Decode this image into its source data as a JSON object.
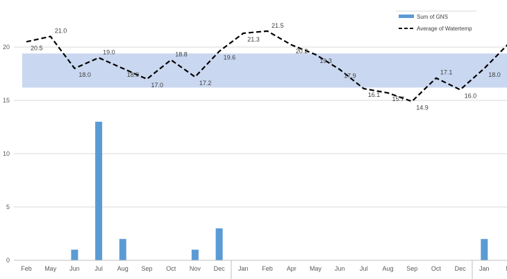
{
  "chart_data": {
    "type": "bar+line",
    "categories": [
      "Feb",
      "May",
      "Jun",
      "Jul",
      "Aug",
      "Sep",
      "Oct",
      "Nov",
      "Dec",
      "Jan",
      "Feb",
      "Apr",
      "May",
      "Jun",
      "Jul",
      "Aug",
      "Sep",
      "Oct",
      "Dec",
      "Jan",
      "M"
    ],
    "year_groups": [
      {
        "label": "",
        "start": 0,
        "end": 8
      },
      {
        "label": "",
        "start": 9,
        "end": 18
      },
      {
        "label": "",
        "start": 19,
        "end": 20
      }
    ],
    "series": [
      {
        "name": "Sum of GNS",
        "type": "bar",
        "values": [
          0,
          0,
          1,
          13,
          2,
          0,
          0,
          1,
          3,
          0,
          0,
          0,
          0,
          0,
          0,
          0,
          0,
          0,
          0,
          2,
          null
        ],
        "color": "#5b9bd5"
      },
      {
        "name": "Average of Watertemp",
        "type": "line",
        "style": "dashed",
        "values": [
          20.5,
          21.0,
          18.0,
          19.0,
          18.0,
          17.0,
          18.8,
          17.2,
          19.6,
          21.3,
          21.5,
          20.2,
          19.3,
          17.9,
          16.1,
          15.7,
          14.9,
          17.1,
          16.0,
          18.0,
          20.3
        ],
        "labels": [
          "20.5",
          "21.0",
          "18.0",
          "19.0",
          "18.0",
          "17.0",
          "18.8",
          "17.2",
          "19.6",
          "21.3",
          "21.5",
          "20.2",
          "19.3",
          "17.9",
          "16.1",
          "15.7",
          "14.9",
          "17.1",
          "16.0",
          "18.0",
          ""
        ],
        "color": "#000000"
      }
    ],
    "band": {
      "from": 16.2,
      "to": 19.4,
      "color": "#c9d7f0"
    },
    "yticks": [
      "0",
      "5",
      "10",
      "15",
      "20"
    ],
    "ylim": [
      0,
      23
    ],
    "grid": true,
    "legend_position": "top-right"
  }
}
